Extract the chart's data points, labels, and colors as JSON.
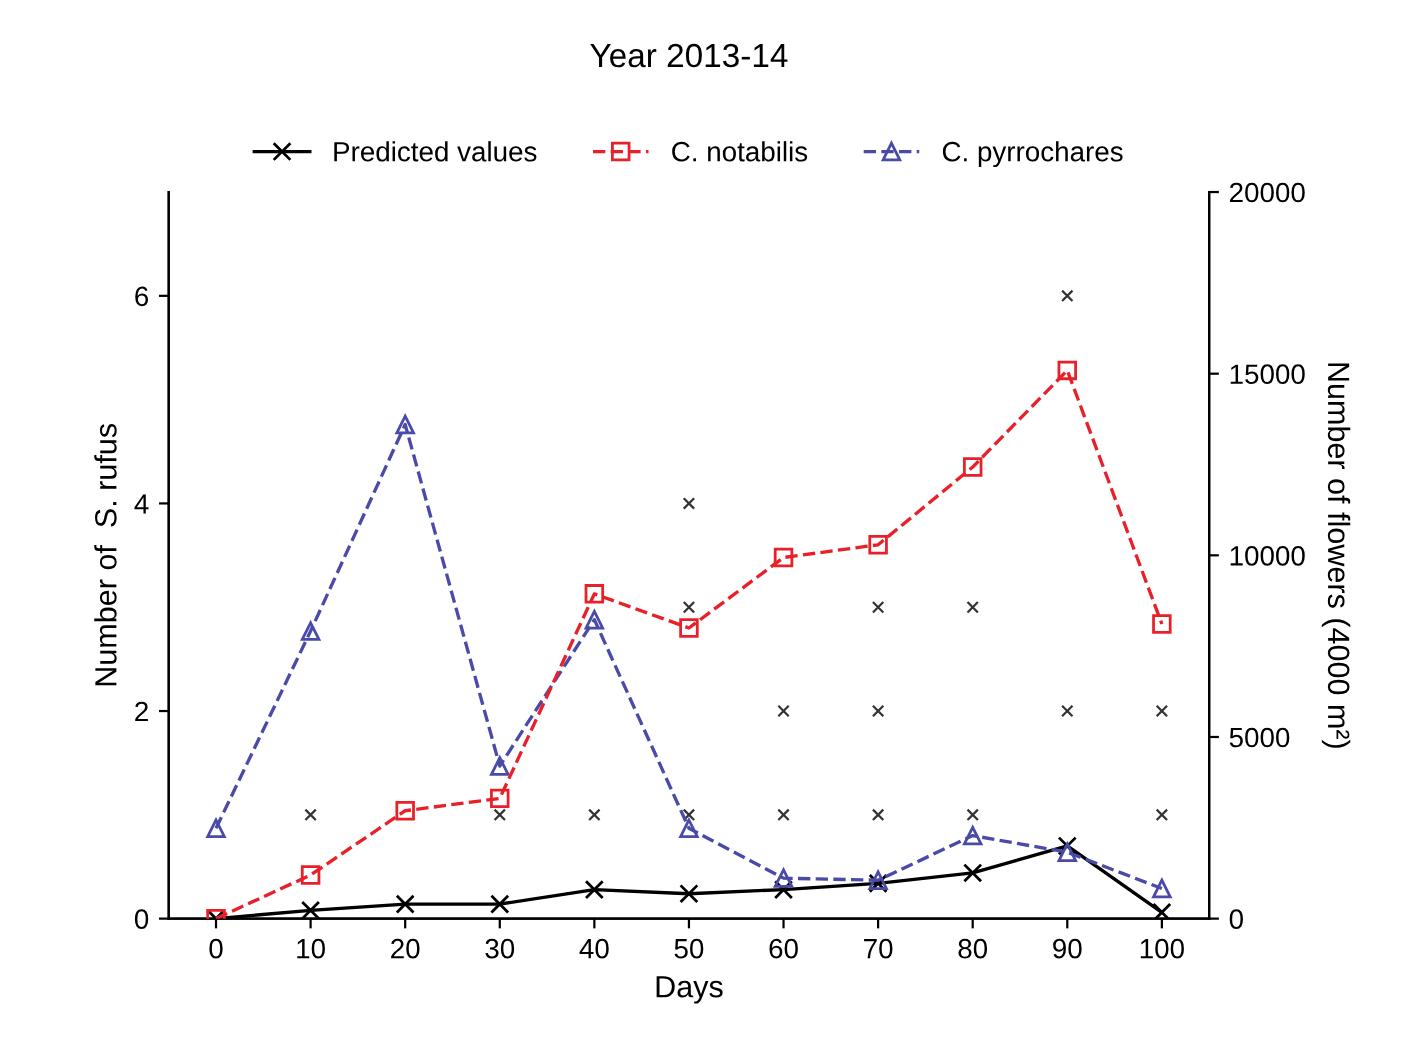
{
  "chart_data": {
    "type": "line",
    "title": "Year 2013-14",
    "xlabel": "Days",
    "ylabel": "Number of  S. rufus",
    "y2label": "Number of flowers (4000 m²)",
    "x": [
      0,
      10,
      20,
      30,
      40,
      50,
      60,
      70,
      80,
      90,
      100
    ],
    "xlim": [
      -5,
      105
    ],
    "xticks": [
      0,
      10,
      20,
      30,
      40,
      50,
      60,
      70,
      80,
      90,
      100
    ],
    "ylim": [
      0,
      7
    ],
    "yticks": [
      0,
      2,
      4,
      6
    ],
    "y2lim": [
      0,
      20000
    ],
    "y2ticks": [
      0,
      5000,
      10000,
      15000,
      20000
    ],
    "grid": false,
    "legend": "top",
    "series": [
      {
        "name": "Predicted values",
        "color": "#000000",
        "marker": "cross",
        "line_style": "solid",
        "values": [
          0,
          0.08,
          0.14,
          0.14,
          0.28,
          0.24,
          0.28,
          0.34,
          0.44,
          0.7,
          0.06
        ]
      },
      {
        "name": "C. notabilis",
        "color": "#e8202a",
        "marker": "square",
        "line_style": "dashed",
        "axis": "y2",
        "values": [
          0,
          1200,
          2970,
          3310,
          8940,
          8000,
          9940,
          10290,
          12430,
          15090,
          8110
        ]
      },
      {
        "name": "C. pyrrochares",
        "color": "#4a4aa8",
        "marker": "triangle",
        "line_style": "dashed",
        "values": [
          0.87,
          2.77,
          4.76,
          1.47,
          2.88,
          0.87,
          0.39,
          0.37,
          0.8,
          0.64,
          0.29
        ]
      },
      {
        "type": "scatter",
        "color": "#333333",
        "marker": "cross",
        "x": [
          10,
          30,
          40,
          50,
          50,
          50,
          60,
          60,
          70,
          70,
          70,
          80,
          80,
          90,
          90,
          100,
          100
        ],
        "values": [
          1,
          1,
          1,
          1,
          3,
          4,
          1,
          2,
          1,
          2,
          3,
          1,
          3,
          2,
          6,
          1,
          2
        ]
      }
    ]
  }
}
